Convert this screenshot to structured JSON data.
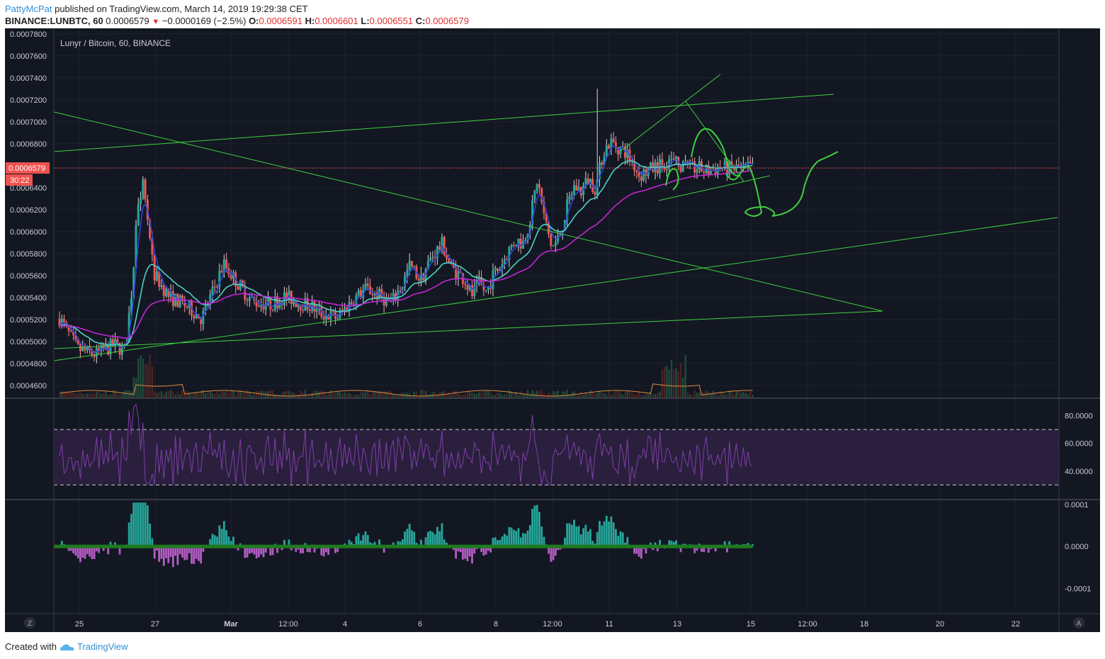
{
  "header": {
    "author": "PattyMcPat",
    "published_text": "published on TradingView.com, March 14, 2019 19:29:38 CET",
    "symbol": "BINANCE:LUNBTC, 60",
    "last": "0.0006579",
    "change": "−0.0000169 (−2.5%)",
    "o_label": "O:",
    "o": "0.0006591",
    "h_label": "H:",
    "h": "0.0006601",
    "l_label": "L:",
    "l": "0.0006551",
    "c_label": "C:",
    "c": "0.0006579"
  },
  "footer": {
    "created_text": "Created with",
    "brand": "TradingView"
  },
  "chart_data": {
    "type": "line",
    "title": "Lunyr / Bitcoin, 60, BINANCE",
    "price_axis": {
      "ticks": [
        "0.0007800",
        "0.0007600",
        "0.0007400",
        "0.0007200",
        "0.0007000",
        "0.0006800",
        "0.0006400",
        "0.0006200",
        "0.0006000",
        "0.0005800",
        "0.0005600",
        "0.0005400",
        "0.0005200",
        "0.0005000",
        "0.0004800",
        "0.0004600"
      ],
      "ylim": [
        0.000449,
        0.000785
      ],
      "last_price_label": "0.0006579",
      "countdown_label": "30:22"
    },
    "time_axis": {
      "labels": [
        "25",
        "27",
        "Mar",
        "12:00",
        "4",
        "6",
        "8",
        "12:00",
        "11",
        "13",
        "15",
        "12:00",
        "18",
        "20",
        "22"
      ]
    },
    "price_series": {
      "name": "LUNBTC",
      "x_day": [
        0,
        0.5,
        1,
        1.5,
        1.8,
        2.0,
        2.15,
        2.3,
        2.6,
        3.0,
        3.5,
        3.9,
        4.2,
        4.5,
        4.9,
        5.3,
        5.8,
        6.2,
        6.6,
        6.9,
        7.2,
        7.6,
        8.0,
        8.4,
        8.8,
        9.1,
        9.4,
        9.6,
        9.9,
        10.2,
        10.5,
        10.7,
        10.9,
        11.1,
        11.3,
        11.5,
        11.7,
        11.9,
        12.1,
        12.3,
        12.5,
        12.7,
        12.9,
        13.1,
        13.3,
        13.5,
        13.7,
        13.9,
        14.1,
        14.3,
        14.5,
        14.7,
        14.9,
        15.1,
        15.3,
        15.5,
        15.7,
        15.9,
        16.1,
        16.3,
        16.5,
        16.7,
        16.9,
        17.1,
        17.3,
        17.5,
        17.7,
        17.9,
        18.1,
        18.3,
        18.5,
        18.7,
        18.9,
        19.0
      ],
      "close": [
        0.000521,
        0.000493,
        0.000488,
        0.000497,
        0.000491,
        0.000553,
        0.000629,
        0.000645,
        0.000561,
        0.000541,
        0.000532,
        0.000521,
        0.000545,
        0.000571,
        0.000552,
        0.000536,
        0.000534,
        0.000541,
        0.000535,
        0.000532,
        0.000525,
        0.000522,
        0.000536,
        0.000548,
        0.000541,
        0.000535,
        0.000552,
        0.000569,
        0.000556,
        0.000577,
        0.000589,
        0.000569,
        0.000562,
        0.000557,
        0.000542,
        0.000552,
        0.000545,
        0.000561,
        0.000569,
        0.000582,
        0.000593,
        0.000589,
        0.000611,
        0.000648,
        0.000611,
        0.000585,
        0.000595,
        0.000621,
        0.000641,
        0.000637,
        0.000648,
        0.000639,
        0.000672,
        0.000682,
        0.000677,
        0.000673,
        0.000664,
        0.000651,
        0.000655,
        0.000658,
        0.000661,
        0.000665,
        0.000662,
        0.000659,
        0.000657,
        0.000658,
        0.000655,
        0.000656,
        0.000659,
        0.000657,
        0.000658,
        0.000657,
        0.000658,
        0.000658
      ]
    },
    "indicators": [
      {
        "kind": "moving-average",
        "color": "#4fd1c5"
      },
      {
        "kind": "moving-average",
        "color": "#c026d3"
      },
      {
        "kind": "volume-ma",
        "color": "#e08a3c"
      }
    ],
    "rsi_panel": {
      "ticks": [
        "80.0000",
        "60.0000",
        "40.0000"
      ],
      "ylim": [
        20,
        92
      ],
      "upper_band": 70,
      "lower_band": 30,
      "color": "#7d3fa8"
    },
    "histogram_panel": {
      "ticks": [
        "0.0001",
        "0.0000",
        "-0.0001"
      ],
      "ylim": [
        -0.00016,
        0.00011
      ],
      "positive_color": "#26a69a",
      "negative_color": "#b45cc4"
    },
    "grid": true,
    "legend": "none"
  }
}
